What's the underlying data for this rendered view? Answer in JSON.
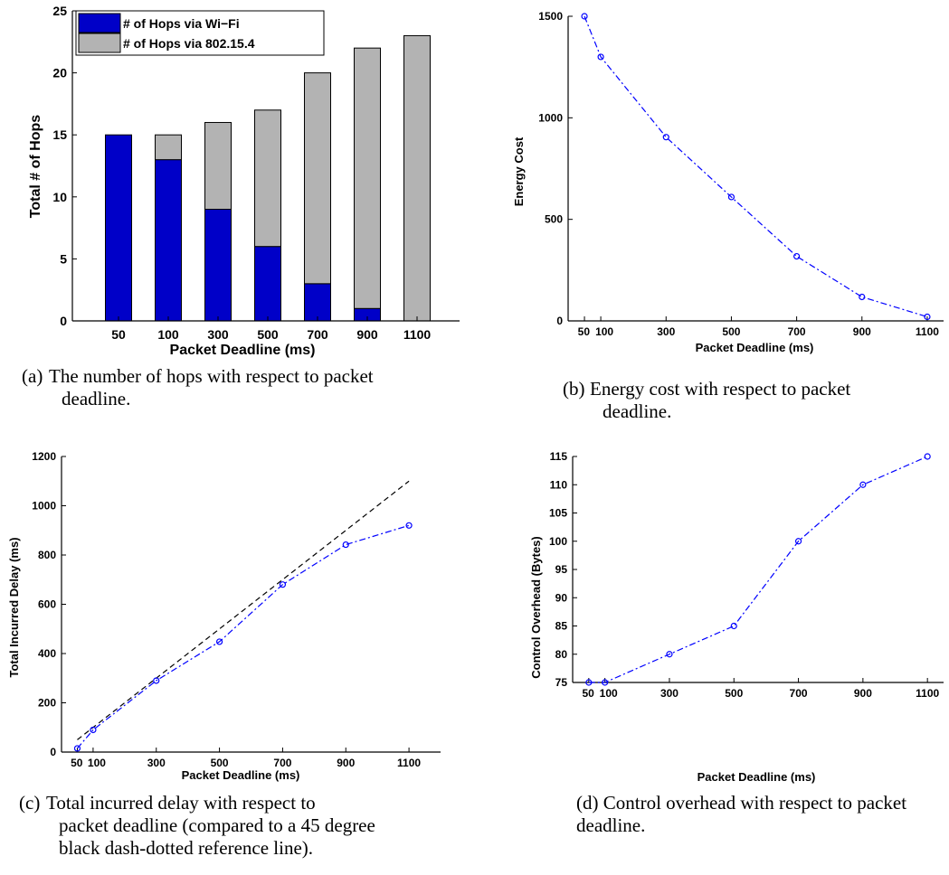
{
  "captions": {
    "a": {
      "tag": "(a)",
      "line1": "The number of hops with respect to packet",
      "line2": "deadline."
    },
    "b": {
      "tag": "(b)",
      "line1": "Energy cost with respect to packet",
      "line2": "deadline."
    },
    "c": {
      "tag": "(c)",
      "line1": "Total incurred delay with respect to",
      "line2": "packet deadline (compared to a 45 degree",
      "line3": "black dash-dotted reference line)."
    },
    "d": {
      "tag": "(d)",
      "line1": "Control overhead with respect to packet",
      "line2": "deadline."
    }
  },
  "colors": {
    "wifi": "#0000c8",
    "zigbee": "#b3b3b3",
    "series": "#0000ff",
    "reference": "#000000"
  },
  "chart_data": [
    {
      "id": "a",
      "type": "bar",
      "stacked": true,
      "categories": [
        "50",
        "100",
        "300",
        "500",
        "700",
        "900",
        "1100"
      ],
      "series": [
        {
          "name": "# of Hops via Wi−Fi",
          "values": [
            15,
            13,
            9,
            6,
            3,
            1,
            0
          ]
        },
        {
          "name": "# of Hops via 802.15.4",
          "values": [
            0,
            2,
            7,
            11,
            17,
            21,
            23
          ]
        }
      ],
      "xlabel": "Packet Deadline (ms)",
      "ylabel": "Total # of Hops",
      "ylim": [
        0,
        25
      ],
      "yticks": [
        0,
        5,
        10,
        15,
        20,
        25
      ],
      "legend": "top-left",
      "grid": false
    },
    {
      "id": "b",
      "type": "line",
      "x": [
        50,
        100,
        300,
        500,
        700,
        900,
        1100
      ],
      "series": [
        {
          "values": [
            1500,
            1300,
            905,
            610,
            318,
            118,
            20
          ]
        }
      ],
      "xlabel": "Packet Deadline (ms)",
      "ylabel": "Energy Cost",
      "xlim": [
        0,
        1150
      ],
      "ylim": [
        0,
        1500
      ],
      "xticks": [
        50,
        100,
        300,
        500,
        700,
        900,
        1100
      ],
      "yticks": [
        0,
        500,
        1000,
        1500
      ],
      "grid": false
    },
    {
      "id": "c",
      "type": "line",
      "x": [
        50,
        100,
        300,
        500,
        700,
        900,
        1100
      ],
      "series": [
        {
          "values": [
            15,
            90,
            290,
            448,
            680,
            842,
            920
          ]
        }
      ],
      "reference_line": {
        "x": [
          50,
          1100
        ],
        "y": [
          50,
          1100
        ]
      },
      "xlabel": "Packet Deadline (ms)",
      "ylabel": "Total Incurred Delay (ms)",
      "xlim": [
        0,
        1200
      ],
      "ylim": [
        0,
        1200
      ],
      "xticks": [
        50,
        100,
        300,
        500,
        700,
        900,
        1100
      ],
      "yticks": [
        0,
        200,
        400,
        600,
        800,
        1000,
        1200
      ],
      "grid": false
    },
    {
      "id": "d",
      "type": "line",
      "x": [
        50,
        100,
        300,
        500,
        700,
        900,
        1100
      ],
      "series": [
        {
          "values": [
            75,
            75,
            80,
            85,
            100,
            110,
            115
          ]
        }
      ],
      "xlabel": "Packet Deadline (ms)",
      "ylabel": "Control Overhead (Bytes)",
      "xlim": [
        0,
        1150
      ],
      "ylim": [
        75,
        115
      ],
      "xticks": [
        50,
        100,
        300,
        500,
        700,
        900,
        1100
      ],
      "yticks": [
        75,
        80,
        85,
        90,
        95,
        100,
        105,
        110,
        115
      ],
      "grid": false
    }
  ]
}
